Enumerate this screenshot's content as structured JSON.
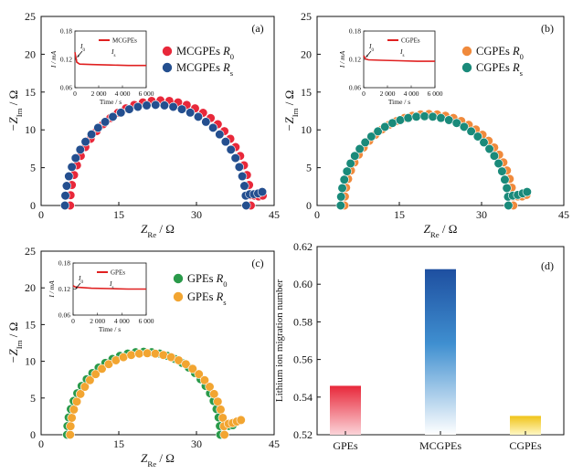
{
  "colors": {
    "axis": "#111111",
    "red": "#e8283a",
    "blue": "#244f8f",
    "orange": "#f08a3c",
    "teal": "#1a8a7a",
    "green": "#2a9a4a",
    "yellow_orange": "#f2a531",
    "inset_line": "#e02020"
  },
  "chart_data": [
    {
      "type": "scatter",
      "panel_label": "(a)",
      "xlabel_main": "Z",
      "xlabel_sub": "Re",
      "xlabel_unit": " / Ω",
      "ylabel_main": "−Z",
      "ylabel_sub": "Im",
      "ylabel_unit": " / Ω",
      "xlim": [
        0,
        45
      ],
      "ylim": [
        0,
        25
      ],
      "xticks": [
        0,
        15,
        30,
        45
      ],
      "yticks": [
        0,
        5,
        10,
        15,
        20,
        25
      ],
      "series": [
        {
          "name": "MCGPEs",
          "sub": "0",
          "color": "#e8283a",
          "semicircle": {
            "x0": 5.6,
            "x1": 40.5,
            "r_y": 13.9,
            "n": 32
          },
          "tail": [
            [
              41.2,
              1.3
            ],
            [
              42.0,
              1.2
            ],
            [
              42.8,
              1.3
            ]
          ]
        },
        {
          "name": "MCGPEs",
          "sub": "s",
          "color": "#244f8f",
          "semicircle": {
            "x0": 4.6,
            "x1": 39.6,
            "r_y": 13.3,
            "n": 32
          },
          "tail": [
            [
              40.3,
              1.5
            ],
            [
              41.1,
              1.5
            ],
            [
              41.9,
              1.6
            ],
            [
              42.7,
              1.8
            ]
          ]
        }
      ],
      "inset": {
        "ylabel": "I / mA",
        "xlabel": "Time / s",
        "xlim": [
          0,
          6000
        ],
        "ylim": [
          0.06,
          0.18
        ],
        "xticks": [
          0,
          2000,
          4000,
          6000
        ],
        "xtick_labels": [
          "0",
          "2 000",
          "4 000",
          "6 000"
        ],
        "yticks": [
          0.06,
          0.12,
          0.18
        ],
        "ytick_labels": [
          "0.06",
          "0.12",
          "0.18"
        ],
        "legend": "MCGPEs",
        "i0_label": "I",
        "i0_sub": "0",
        "is_label": "I",
        "is_sub": "s",
        "trace": [
          [
            0,
            0.135
          ],
          [
            150,
            0.114
          ],
          [
            400,
            0.11
          ],
          [
            1500,
            0.109
          ],
          [
            3000,
            0.108
          ],
          [
            4500,
            0.107
          ],
          [
            6000,
            0.107
          ]
        ]
      }
    },
    {
      "type": "scatter",
      "panel_label": "(b)",
      "xlabel_main": "Z",
      "xlabel_sub": "Re",
      "xlabel_unit": " / Ω",
      "ylabel_main": "−Z",
      "ylabel_sub": "Im",
      "ylabel_unit": " / Ω",
      "xlim": [
        0,
        45
      ],
      "ylim": [
        0,
        25
      ],
      "xticks": [
        0,
        15,
        30,
        45
      ],
      "yticks": [
        0,
        5,
        10,
        15,
        20,
        25
      ],
      "series": [
        {
          "name": "CGPEs",
          "sub": "0",
          "color": "#f08a3c",
          "semicircle": {
            "x0": 5.0,
            "x1": 35.8,
            "r_y": 12.1,
            "n": 32
          },
          "tail": [
            [
              36.6,
              1.2
            ],
            [
              37.4,
              1.2
            ],
            [
              38.2,
              1.4
            ]
          ]
        },
        {
          "name": "CGPEs",
          "sub": "s",
          "color": "#1a8a7a",
          "semicircle": {
            "x0": 4.3,
            "x1": 34.9,
            "r_y": 11.8,
            "n": 32
          },
          "tail": [
            [
              35.7,
              1.3
            ],
            [
              36.6,
              1.4
            ],
            [
              37.5,
              1.6
            ],
            [
              38.3,
              1.8
            ]
          ]
        }
      ],
      "inset": {
        "ylabel": "I / mA",
        "xlabel": "Time / s",
        "xlim": [
          0,
          6000
        ],
        "ylim": [
          0.06,
          0.18
        ],
        "xticks": [
          0,
          2000,
          4000,
          6000
        ],
        "xtick_labels": [
          "0",
          "2 000",
          "4 000",
          "6 000"
        ],
        "yticks": [
          0.06,
          0.12,
          0.18
        ],
        "ytick_labels": [
          "0.06",
          "0.12",
          "0.18"
        ],
        "legend": "CGPEs",
        "i0_label": "I",
        "i0_sub": "0",
        "is_label": "I",
        "is_sub": "s",
        "trace": [
          [
            0,
            0.128
          ],
          [
            150,
            0.121
          ],
          [
            400,
            0.119
          ],
          [
            1500,
            0.118
          ],
          [
            3000,
            0.117
          ],
          [
            4500,
            0.116
          ],
          [
            6000,
            0.116
          ]
        ]
      }
    },
    {
      "type": "scatter",
      "panel_label": "(c)",
      "xlabel_main": "Z",
      "xlabel_sub": "Re",
      "xlabel_unit": " / Ω",
      "ylabel_main": "−Z",
      "ylabel_sub": "Im",
      "ylabel_unit": " / Ω",
      "xlim": [
        0,
        45
      ],
      "ylim": [
        0,
        25
      ],
      "xticks": [
        0,
        15,
        30,
        45
      ],
      "yticks": [
        0,
        5,
        10,
        15,
        20,
        25
      ],
      "series": [
        {
          "name": "GPEs",
          "sub": "0",
          "color": "#2a9a4a",
          "semicircle": {
            "x0": 5.0,
            "x1": 34.6,
            "r_y": 11.3,
            "n": 30
          },
          "tail": [
            [
              35.4,
              1.2
            ],
            [
              36.2,
              1.2
            ],
            [
              37.0,
              1.3
            ]
          ]
        },
        {
          "name": "GPEs",
          "sub": "s",
          "color": "#f2a531",
          "semicircle": {
            "x0": 5.6,
            "x1": 35.4,
            "r_y": 11.1,
            "n": 30
          },
          "tail": [
            [
              36.2,
              1.5
            ],
            [
              37.0,
              1.6
            ],
            [
              37.8,
              1.8
            ],
            [
              38.6,
              2.0
            ]
          ]
        }
      ],
      "inset": {
        "ylabel": "I / mA",
        "xlabel": "Time / s",
        "xlim": [
          0,
          6000
        ],
        "ylim": [
          0.06,
          0.18
        ],
        "xticks": [
          0,
          2000,
          4000,
          6000
        ],
        "xtick_labels": [
          "0",
          "2 000",
          "4 000",
          "6 000"
        ],
        "yticks": [
          0.06,
          0.12,
          0.18
        ],
        "ytick_labels": [
          "0.06",
          "0.12",
          "0.18"
        ],
        "legend": "GPEs",
        "i0_label": "I",
        "i0_sub": "0",
        "is_label": "I",
        "is_sub": "s",
        "trace": [
          [
            0,
            0.128
          ],
          [
            150,
            0.125
          ],
          [
            400,
            0.124
          ],
          [
            1500,
            0.122
          ],
          [
            3000,
            0.121
          ],
          [
            4500,
            0.12
          ],
          [
            6000,
            0.12
          ]
        ]
      }
    },
    {
      "type": "bar",
      "panel_label": "(d)",
      "ylabel": "Lithium ion migration number",
      "categories": [
        "GPEs",
        "MCGPEs",
        "CGPEs"
      ],
      "values": [
        0.546,
        0.608,
        0.53
      ],
      "bar_colors": [
        "#e8283a",
        "#1e4fa0",
        "#f5cf2a"
      ],
      "ylim": [
        0.52,
        0.62
      ],
      "yticks": [
        0.52,
        0.54,
        0.56,
        0.58,
        0.6,
        0.62
      ],
      "ytick_labels": [
        "0.52",
        "0.54",
        "0.56",
        "0.58",
        "0.60",
        "0.62"
      ]
    }
  ]
}
